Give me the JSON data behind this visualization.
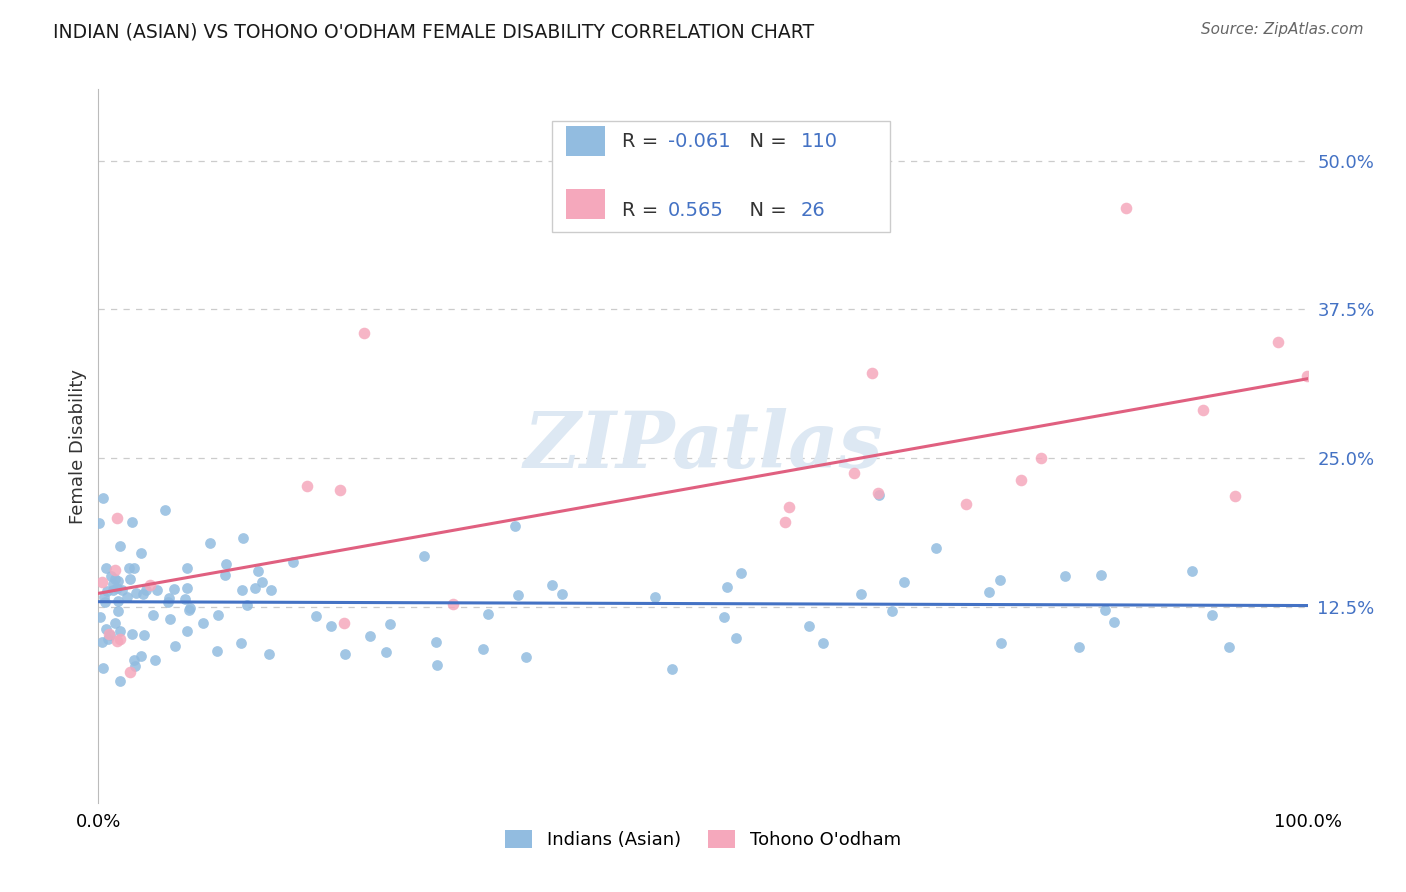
{
  "title": "INDIAN (ASIAN) VS TOHONO O'ODHAM FEMALE DISABILITY CORRELATION CHART",
  "source_text": "Source: ZipAtlas.com",
  "ylabel": "Female Disability",
  "xlabel": "",
  "legend_label_1": "Indians (Asian)",
  "legend_label_2": "Tohono O'odham",
  "r1": -0.061,
  "n1": 110,
  "r2": 0.565,
  "n2": 26,
  "color1": "#92bce0",
  "color2": "#f5a8bc",
  "trendline1_color": "#4472c4",
  "trendline2_color": "#e06080",
  "text_blue": "#4472c4",
  "background_color": "#ffffff",
  "watermark": "ZIPatlas",
  "xlim": [
    0.0,
    1.0
  ],
  "ylim": [
    -0.04,
    0.56
  ],
  "yticks": [
    0.125,
    0.25,
    0.375,
    0.5
  ],
  "ytick_labels": [
    "12.5%",
    "25.0%",
    "37.5%",
    "50.0%"
  ],
  "xtick_labels": [
    "0.0%",
    "100.0%"
  ]
}
